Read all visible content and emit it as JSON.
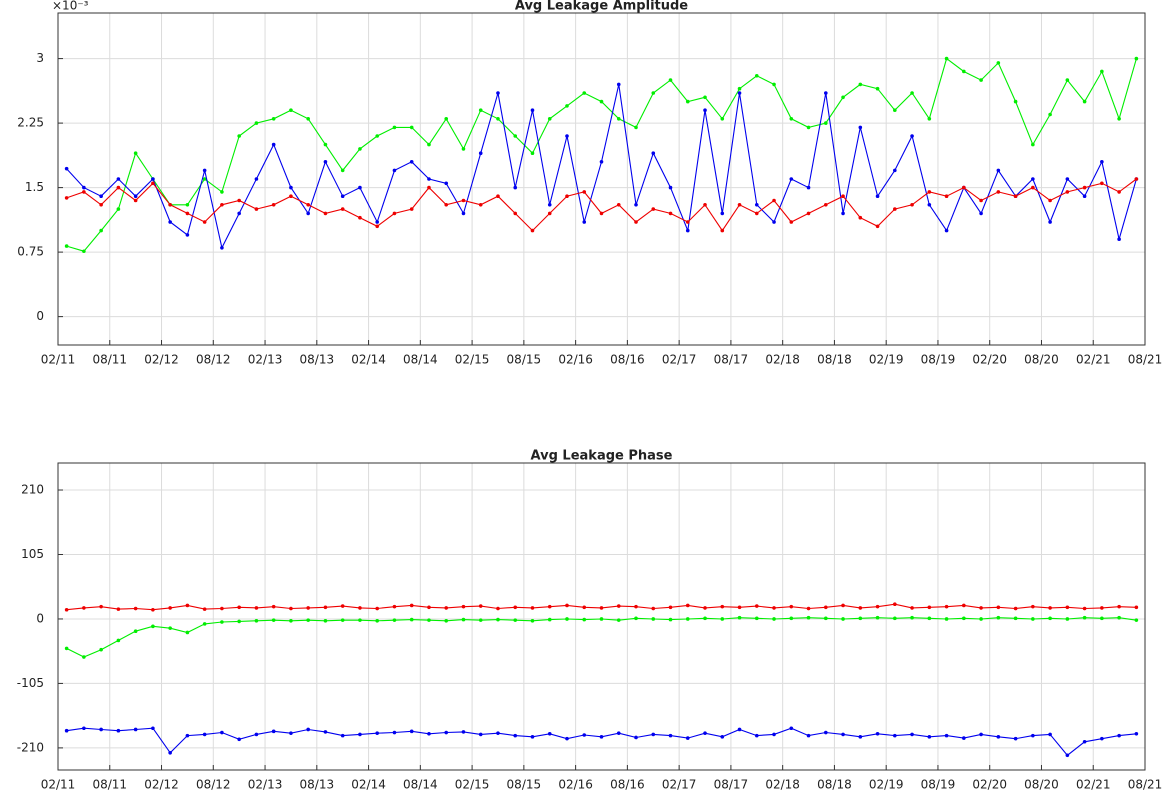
{
  "chart_data": [
    {
      "type": "line",
      "title": "Avg Leakage Amplitude",
      "y_multiplier": "×10⁻³",
      "grid": true,
      "x": [
        1,
        3,
        5,
        7,
        9,
        11,
        13,
        15,
        17,
        19,
        21,
        23,
        25,
        27,
        29,
        31,
        33,
        35,
        37,
        39,
        41,
        43,
        45,
        47,
        49,
        51,
        53,
        55,
        57,
        59,
        61,
        63,
        65,
        67,
        69,
        71,
        73,
        75,
        77,
        79,
        81,
        83,
        85,
        87,
        89,
        91,
        93,
        95,
        97,
        99,
        101,
        103,
        105,
        107,
        109,
        111,
        113,
        115,
        117,
        119,
        121,
        123,
        125
      ],
      "xlim": [
        0,
        126
      ],
      "xticks": [
        {
          "value": 0,
          "label": "02/11"
        },
        {
          "value": 6,
          "label": "08/11"
        },
        {
          "value": 12,
          "label": "02/12"
        },
        {
          "value": 18,
          "label": "08/12"
        },
        {
          "value": 24,
          "label": "02/13"
        },
        {
          "value": 30,
          "label": "08/13"
        },
        {
          "value": 36,
          "label": "02/14"
        },
        {
          "value": 42,
          "label": "08/14"
        },
        {
          "value": 48,
          "label": "02/15"
        },
        {
          "value": 54,
          "label": "08/15"
        },
        {
          "value": 60,
          "label": "02/16"
        },
        {
          "value": 66,
          "label": "08/16"
        },
        {
          "value": 72,
          "label": "02/17"
        },
        {
          "value": 78,
          "label": "08/17"
        },
        {
          "value": 84,
          "label": "02/18"
        },
        {
          "value": 90,
          "label": "08/18"
        },
        {
          "value": 96,
          "label": "02/19"
        },
        {
          "value": 102,
          "label": "08/19"
        },
        {
          "value": 108,
          "label": "02/20"
        },
        {
          "value": 114,
          "label": "08/20"
        },
        {
          "value": 120,
          "label": "02/21"
        },
        {
          "value": 126,
          "label": "08/21"
        }
      ],
      "ylim": [
        -0.33,
        3.53
      ],
      "yticks": [
        0,
        0.75,
        1.5,
        2.25,
        3
      ],
      "series": [
        {
          "color": "#00ee00",
          "values": [
            0.82,
            0.76,
            1.0,
            1.25,
            1.9,
            1.6,
            1.3,
            1.3,
            1.6,
            1.45,
            2.1,
            2.25,
            2.3,
            2.4,
            2.3,
            2.0,
            1.7,
            1.95,
            2.1,
            2.2,
            2.2,
            2.0,
            2.3,
            1.95,
            2.4,
            2.3,
            2.1,
            1.9,
            2.3,
            2.45,
            2.6,
            2.5,
            2.3,
            2.2,
            2.6,
            2.75,
            2.5,
            2.55,
            2.3,
            2.65,
            2.8,
            2.7,
            2.3,
            2.2,
            2.25,
            2.55,
            2.7,
            2.65,
            2.4,
            2.6,
            2.3,
            3.0,
            2.85,
            2.75,
            2.95,
            2.5,
            2.0,
            2.35,
            2.75,
            2.5,
            2.85,
            2.3,
            3.0
          ]
        },
        {
          "color": "#0000ee",
          "values": [
            1.72,
            1.5,
            1.4,
            1.6,
            1.4,
            1.6,
            1.1,
            0.95,
            1.7,
            0.8,
            1.2,
            1.6,
            2.0,
            1.5,
            1.2,
            1.8,
            1.4,
            1.5,
            1.1,
            1.7,
            1.8,
            1.6,
            1.55,
            1.2,
            1.9,
            2.6,
            1.5,
            2.4,
            1.3,
            2.1,
            1.1,
            1.8,
            2.7,
            1.3,
            1.9,
            1.5,
            1.0,
            2.4,
            1.2,
            2.6,
            1.3,
            1.1,
            1.6,
            1.5,
            2.6,
            1.2,
            2.2,
            1.4,
            1.7,
            2.1,
            1.3,
            1.0,
            1.5,
            1.2,
            1.7,
            1.4,
            1.6,
            1.1,
            1.6,
            1.4,
            1.8,
            0.9,
            1.6
          ]
        },
        {
          "color": "#ee0000",
          "values": [
            1.38,
            1.45,
            1.3,
            1.5,
            1.35,
            1.55,
            1.3,
            1.2,
            1.1,
            1.3,
            1.35,
            1.25,
            1.3,
            1.4,
            1.3,
            1.2,
            1.25,
            1.15,
            1.05,
            1.2,
            1.25,
            1.5,
            1.3,
            1.35,
            1.3,
            1.4,
            1.2,
            1.0,
            1.2,
            1.4,
            1.45,
            1.2,
            1.3,
            1.1,
            1.25,
            1.2,
            1.1,
            1.3,
            1.0,
            1.3,
            1.2,
            1.35,
            1.1,
            1.2,
            1.3,
            1.4,
            1.15,
            1.05,
            1.25,
            1.3,
            1.45,
            1.4,
            1.5,
            1.35,
            1.45,
            1.4,
            1.5,
            1.35,
            1.45,
            1.5,
            1.55,
            1.45,
            1.6
          ]
        }
      ]
    },
    {
      "type": "line",
      "title": "Avg Leakage Phase",
      "grid": true,
      "x": [
        1,
        3,
        5,
        7,
        9,
        11,
        13,
        15,
        17,
        19,
        21,
        23,
        25,
        27,
        29,
        31,
        33,
        35,
        37,
        39,
        41,
        43,
        45,
        47,
        49,
        51,
        53,
        55,
        57,
        59,
        61,
        63,
        65,
        67,
        69,
        71,
        73,
        75,
        77,
        79,
        81,
        83,
        85,
        87,
        89,
        91,
        93,
        95,
        97,
        99,
        101,
        103,
        105,
        107,
        109,
        111,
        113,
        115,
        117,
        119,
        121,
        123,
        125
      ],
      "xlim": [
        0,
        126
      ],
      "xticks": [
        {
          "value": 0,
          "label": "02/11"
        },
        {
          "value": 6,
          "label": "08/11"
        },
        {
          "value": 12,
          "label": "02/12"
        },
        {
          "value": 18,
          "label": "08/12"
        },
        {
          "value": 24,
          "label": "02/13"
        },
        {
          "value": 30,
          "label": "08/13"
        },
        {
          "value": 36,
          "label": "02/14"
        },
        {
          "value": 42,
          "label": "08/14"
        },
        {
          "value": 48,
          "label": "02/15"
        },
        {
          "value": 54,
          "label": "08/15"
        },
        {
          "value": 60,
          "label": "02/16"
        },
        {
          "value": 66,
          "label": "08/16"
        },
        {
          "value": 72,
          "label": "02/17"
        },
        {
          "value": 78,
          "label": "08/17"
        },
        {
          "value": 84,
          "label": "02/18"
        },
        {
          "value": 90,
          "label": "08/18"
        },
        {
          "value": 96,
          "label": "02/19"
        },
        {
          "value": 102,
          "label": "08/19"
        },
        {
          "value": 108,
          "label": "02/20"
        },
        {
          "value": 114,
          "label": "08/20"
        },
        {
          "value": 120,
          "label": "02/21"
        },
        {
          "value": 126,
          "label": "08/21"
        }
      ],
      "ylim": [
        -246,
        254
      ],
      "yticks": [
        -210,
        -105,
        0,
        105,
        210
      ],
      "series": [
        {
          "color": "#ee0000",
          "values": [
            15,
            18,
            20,
            16,
            17,
            15,
            18,
            22,
            16,
            17,
            19,
            18,
            20,
            17,
            18,
            19,
            21,
            18,
            17,
            20,
            22,
            19,
            18,
            20,
            21,
            17,
            19,
            18,
            20,
            22,
            19,
            18,
            21,
            20,
            17,
            19,
            22,
            18,
            20,
            19,
            21,
            18,
            20,
            17,
            19,
            22,
            18,
            20,
            24,
            18,
            19,
            20,
            22,
            18,
            19,
            17,
            20,
            18,
            19,
            17,
            18,
            20,
            19
          ]
        },
        {
          "color": "#00ee00",
          "values": [
            -48,
            -62,
            -50,
            -35,
            -20,
            -12,
            -15,
            -22,
            -8,
            -5,
            -4,
            -3,
            -2,
            -3,
            -2,
            -3,
            -2,
            -2,
            -3,
            -2,
            -1,
            -2,
            -3,
            -1,
            -2,
            -1,
            -2,
            -3,
            -1,
            0,
            -1,
            0,
            -2,
            1,
            0,
            -1,
            0,
            1,
            0,
            2,
            1,
            0,
            1,
            2,
            1,
            0,
            1,
            2,
            1,
            2,
            1,
            0,
            1,
            0,
            2,
            1,
            0,
            1,
            0,
            2,
            1,
            2,
            -2
          ]
        },
        {
          "color": "#0000ee",
          "values": [
            -182,
            -178,
            -180,
            -182,
            -180,
            -178,
            -218,
            -190,
            -188,
            -185,
            -196,
            -188,
            -183,
            -186,
            -180,
            -184,
            -190,
            -188,
            -186,
            -185,
            -183,
            -187,
            -185,
            -184,
            -188,
            -186,
            -190,
            -192,
            -187,
            -195,
            -189,
            -192,
            -186,
            -193,
            -188,
            -190,
            -194,
            -186,
            -192,
            -180,
            -190,
            -188,
            -178,
            -190,
            -185,
            -188,
            -192,
            -187,
            -190,
            -188,
            -192,
            -190,
            -194,
            -188,
            -192,
            -195,
            -190,
            -188,
            -222,
            -200,
            -195,
            -190,
            -187
          ]
        }
      ]
    }
  ]
}
